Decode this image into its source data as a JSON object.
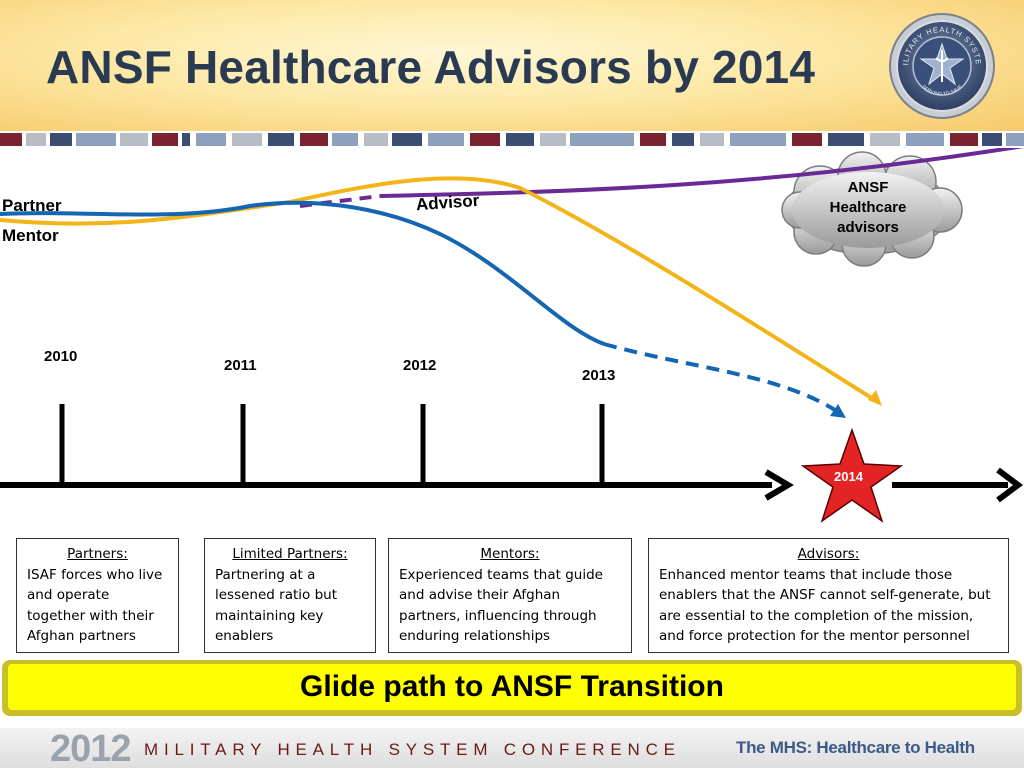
{
  "header": {
    "title": "ANSF Healthcare Advisors by 2014",
    "seal_text_top": "MILITARY HEALTH SYSTEM",
    "seal_text_bottom": "SERVING TO SAVE"
  },
  "timeline": {
    "left_labels": {
      "partner": "Partner",
      "mentor": "Mentor"
    },
    "advisor_label": "Advisor",
    "years": [
      "2010",
      "2011",
      "2012",
      "2013"
    ],
    "target_year": "2014",
    "cloud_text": [
      "ANSF",
      "Healthcare",
      "advisors"
    ],
    "colors": {
      "partner": "#f2b418",
      "mentor": "#1466b2",
      "advisor": "#6a2a96",
      "star": "#e42424"
    }
  },
  "phases": [
    {
      "title": "Partners:",
      "text": "ISAF forces who live and operate together with their Afghan partners"
    },
    {
      "title": "Limited Partners:",
      "text": "Partnering at a lessened ratio but maintaining key enablers"
    },
    {
      "title": "Mentors:",
      "text": "Experienced teams that guide and advise their Afghan partners, influencing through enduring relationships"
    },
    {
      "title": "Advisors:",
      "text": "Enhanced mentor teams that include those enablers that the ANSF cannot self-generate, but are essential to the completion of the mission, and force protection for the mentor personnel"
    }
  ],
  "banner": {
    "text": "Glide path to ANSF Transition"
  },
  "footer": {
    "year": "2012",
    "conference": "MILITARY HEALTH SYSTEM CONFERENCE",
    "tagline": "The MHS: Healthcare to Health"
  }
}
